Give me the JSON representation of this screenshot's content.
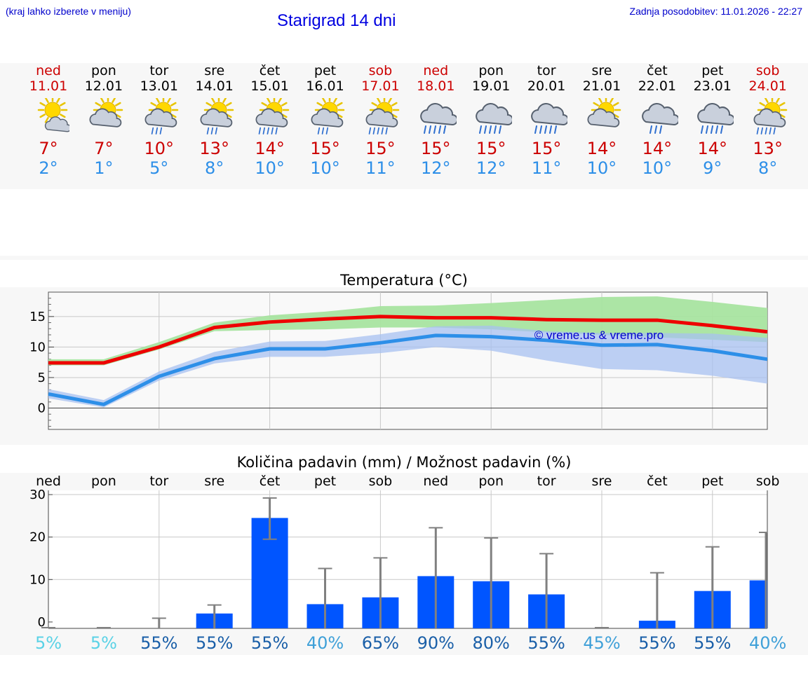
{
  "header": {
    "region_hint": "(kraj lahko izberete v meniju)",
    "title": "Starigrad 14 dni",
    "updated": "Zadnja posodobitev: 11.01.2026 - 22:27"
  },
  "days": [
    {
      "name": "ned",
      "date": "11.01",
      "weekend": true,
      "icon": "sun-cloud-small-icon",
      "tmax": "7°",
      "tmin": "2°"
    },
    {
      "name": "pon",
      "date": "12.01",
      "weekend": false,
      "icon": "sun-cloud-icon",
      "tmax": "7°",
      "tmin": "1°"
    },
    {
      "name": "tor",
      "date": "13.01",
      "weekend": false,
      "icon": "sun-cloud-rain-icon",
      "tmax": "10°",
      "tmin": "5°"
    },
    {
      "name": "sre",
      "date": "14.01",
      "weekend": false,
      "icon": "sun-cloud-rain-icon",
      "tmax": "13°",
      "tmin": "8°"
    },
    {
      "name": "čet",
      "date": "15.01",
      "weekend": false,
      "icon": "sun-cloud-heavy-rain-icon",
      "tmax": "14°",
      "tmin": "10°"
    },
    {
      "name": "pet",
      "date": "16.01",
      "weekend": false,
      "icon": "sun-cloud-rain-icon",
      "tmax": "15°",
      "tmin": "10°"
    },
    {
      "name": "sob",
      "date": "17.01",
      "weekend": true,
      "icon": "sun-cloud-heavy-rain-icon",
      "tmax": "15°",
      "tmin": "11°"
    },
    {
      "name": "ned",
      "date": "18.01",
      "weekend": true,
      "icon": "cloud-heavy-rain-icon",
      "tmax": "15°",
      "tmin": "12°"
    },
    {
      "name": "pon",
      "date": "19.01",
      "weekend": false,
      "icon": "cloud-heavy-rain-icon",
      "tmax": "15°",
      "tmin": "12°"
    },
    {
      "name": "tor",
      "date": "20.01",
      "weekend": false,
      "icon": "cloud-heavy-rain-icon",
      "tmax": "15°",
      "tmin": "11°"
    },
    {
      "name": "sre",
      "date": "21.01",
      "weekend": false,
      "icon": "sun-cloud-icon",
      "tmax": "14°",
      "tmin": "10°"
    },
    {
      "name": "čet",
      "date": "22.01",
      "weekend": false,
      "icon": "cloud-rain-icon",
      "tmax": "14°",
      "tmin": "10°"
    },
    {
      "name": "pet",
      "date": "23.01",
      "weekend": false,
      "icon": "cloud-heavy-rain-icon",
      "tmax": "14°",
      "tmin": "9°"
    },
    {
      "name": "sob",
      "date": "24.01",
      "weekend": true,
      "icon": "sun-cloud-heavy-rain-icon",
      "tmax": "13°",
      "tmin": "8°"
    }
  ],
  "colors": {
    "max_line": "#ee0000",
    "min_line": "#2d8fe8",
    "max_band": "#a8e4a0",
    "min_band": "#a7c0f0",
    "overlap_band": "#7ec8b0",
    "precip_bar": "#0055ff",
    "error_bar": "#808080",
    "weekend_text": "#cc0000",
    "grid": "#c8c8c8"
  },
  "chart_data": [
    {
      "type": "line",
      "title": "Temperatura (°C)",
      "watermark": "© vreme.us & vreme.pro",
      "ylim": [
        -3.5,
        19
      ],
      "yticks": [
        0,
        5,
        10,
        15
      ],
      "ytick_labels": [
        "0",
        "5",
        "10",
        "15"
      ],
      "x": [
        0,
        1,
        2,
        3,
        4,
        5,
        6,
        7,
        8,
        9,
        10,
        11,
        12,
        13
      ],
      "series": [
        {
          "name": "max",
          "values": [
            7.4,
            7.4,
            10,
            13.2,
            14.1,
            14.6,
            15,
            14.8,
            14.8,
            14.5,
            14.4,
            14.4,
            13.5,
            12.5
          ],
          "band_low": [
            7.0,
            7.0,
            9.6,
            12.6,
            12.8,
            12.9,
            13.2,
            13.2,
            12.9,
            12.4,
            12.0,
            11.6,
            11.2,
            10.8
          ],
          "band_high": [
            8.0,
            8.0,
            10.8,
            14.0,
            15.2,
            15.8,
            16.7,
            16.8,
            17.2,
            17.7,
            18.2,
            18.3,
            17.4,
            16.4
          ]
        },
        {
          "name": "min",
          "values": [
            2.3,
            0.6,
            5.2,
            8.1,
            9.7,
            9.7,
            10.7,
            11.9,
            11.7,
            11.1,
            10.3,
            10.4,
            9.4,
            8.0
          ],
          "band_low": [
            1.6,
            0.1,
            4.5,
            7.3,
            8.4,
            8.4,
            9.0,
            10.0,
            9.4,
            7.8,
            6.4,
            6.2,
            5.3,
            4.0
          ],
          "band_high": [
            3.1,
            1.3,
            6.0,
            9.2,
            10.9,
            11.0,
            12.1,
            13.4,
            13.5,
            12.6,
            12.3,
            12.3,
            12.2,
            11.5
          ]
        }
      ]
    },
    {
      "type": "bar",
      "title": "Količina padavin (mm) / Možnost padavin (%)",
      "ylim": [
        -1.5,
        31
      ],
      "yticks": [
        0,
        10,
        20,
        30
      ],
      "ytick_labels": [
        "0",
        "10",
        "20",
        "30"
      ],
      "categories": [
        "ned",
        "pon",
        "tor",
        "sre",
        "čet",
        "pet",
        "sob",
        "ned",
        "pon",
        "tor",
        "sre",
        "čet",
        "pet",
        "sob"
      ],
      "values": [
        0,
        0,
        0,
        2.0,
        24.5,
        4.2,
        5.8,
        10.8,
        9.6,
        6.5,
        0,
        0.3,
        7.3,
        9.8
      ],
      "err_low": [
        0,
        0,
        0,
        0,
        19.5,
        0,
        0,
        0,
        0,
        0,
        0,
        0,
        0,
        0
      ],
      "err_high": [
        0,
        0,
        0.9,
        4.0,
        29.2,
        12.6,
        15.1,
        22.2,
        19.8,
        16.1,
        0,
        11.6,
        17.7,
        21.1
      ],
      "probability": [
        "5%",
        "5%",
        "55%",
        "55%",
        "55%",
        "40%",
        "65%",
        "90%",
        "80%",
        "55%",
        "45%",
        "55%",
        "55%",
        "40%"
      ],
      "probability_colors": [
        "#5ad2e6",
        "#5ad2e6",
        "#1a5fa8",
        "#1a5fa8",
        "#1a5fa8",
        "#3fa0d8",
        "#1a5fa8",
        "#1a5fa8",
        "#1a5fa8",
        "#1a5fa8",
        "#3fa0d8",
        "#1a5fa8",
        "#1a5fa8",
        "#3fa0d8"
      ]
    }
  ]
}
